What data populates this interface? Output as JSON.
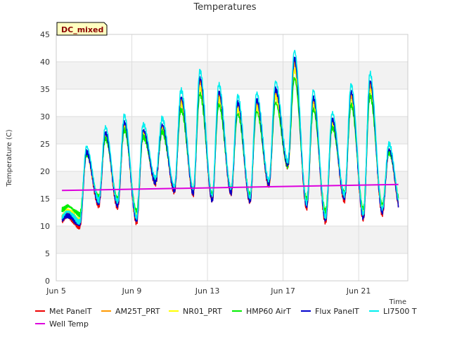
{
  "chart_data": {
    "type": "line",
    "title": "Temperatures",
    "xlabel": "Time",
    "ylabel": "Temperature (C)",
    "badge": "DC_mixed",
    "ylim": [
      0,
      45
    ],
    "xlim": [
      5,
      23.6
    ],
    "yticks": [
      0,
      5,
      10,
      15,
      20,
      25,
      30,
      35,
      40,
      45
    ],
    "xticks": [
      {
        "value": 5,
        "label": "Jun 5"
      },
      {
        "value": 9,
        "label": "Jun 9"
      },
      {
        "value": 13,
        "label": "Jun 13"
      },
      {
        "value": 17,
        "label": "Jun 17"
      },
      {
        "value": 21,
        "label": "Jun 21"
      }
    ],
    "daily": {
      "days": [
        5.3,
        6,
        7,
        8,
        9,
        10,
        11,
        12,
        13,
        14,
        15,
        16,
        17,
        18,
        19,
        20,
        21,
        22,
        23.1
      ],
      "min": [
        11,
        10.2,
        14,
        13.7,
        11,
        18,
        16.5,
        16,
        14.8,
        16,
        14.5,
        17.5,
        21,
        13.5,
        11,
        15,
        11.5,
        12.5,
        12.5
      ],
      "max": [
        12,
        23.5,
        27,
        29,
        27.5,
        28.5,
        33.5,
        37,
        34.5,
        32.5,
        33,
        35,
        40.5,
        33.5,
        29.5,
        34.5,
        36.5,
        24,
        14
      ]
    },
    "series": [
      {
        "name": "Met PanelT",
        "color": "#ee0000",
        "offset": -0.3,
        "amp": 1.0
      },
      {
        "name": "AM25T_PRT",
        "color": "#ff9900",
        "offset": 0.0,
        "amp": 0.95
      },
      {
        "name": "NR01_PRT",
        "color": "#ffff00",
        "offset": 0.0,
        "amp": 0.9
      },
      {
        "name": "HMP60 AirT",
        "color": "#00ee00",
        "offset": 0.2,
        "amp": 0.82
      },
      {
        "name": "Flux PanelT",
        "color": "#0000cc",
        "offset": 0.0,
        "amp": 1.0
      },
      {
        "name": "LI7500 T",
        "color": "#00eeee",
        "offset": 0.9,
        "amp": 1.03
      },
      {
        "name": "Well Temp",
        "color": "#dd00dd",
        "x": [
          5.3,
          23.1
        ],
        "y": [
          16.5,
          17.6
        ]
      }
    ]
  }
}
